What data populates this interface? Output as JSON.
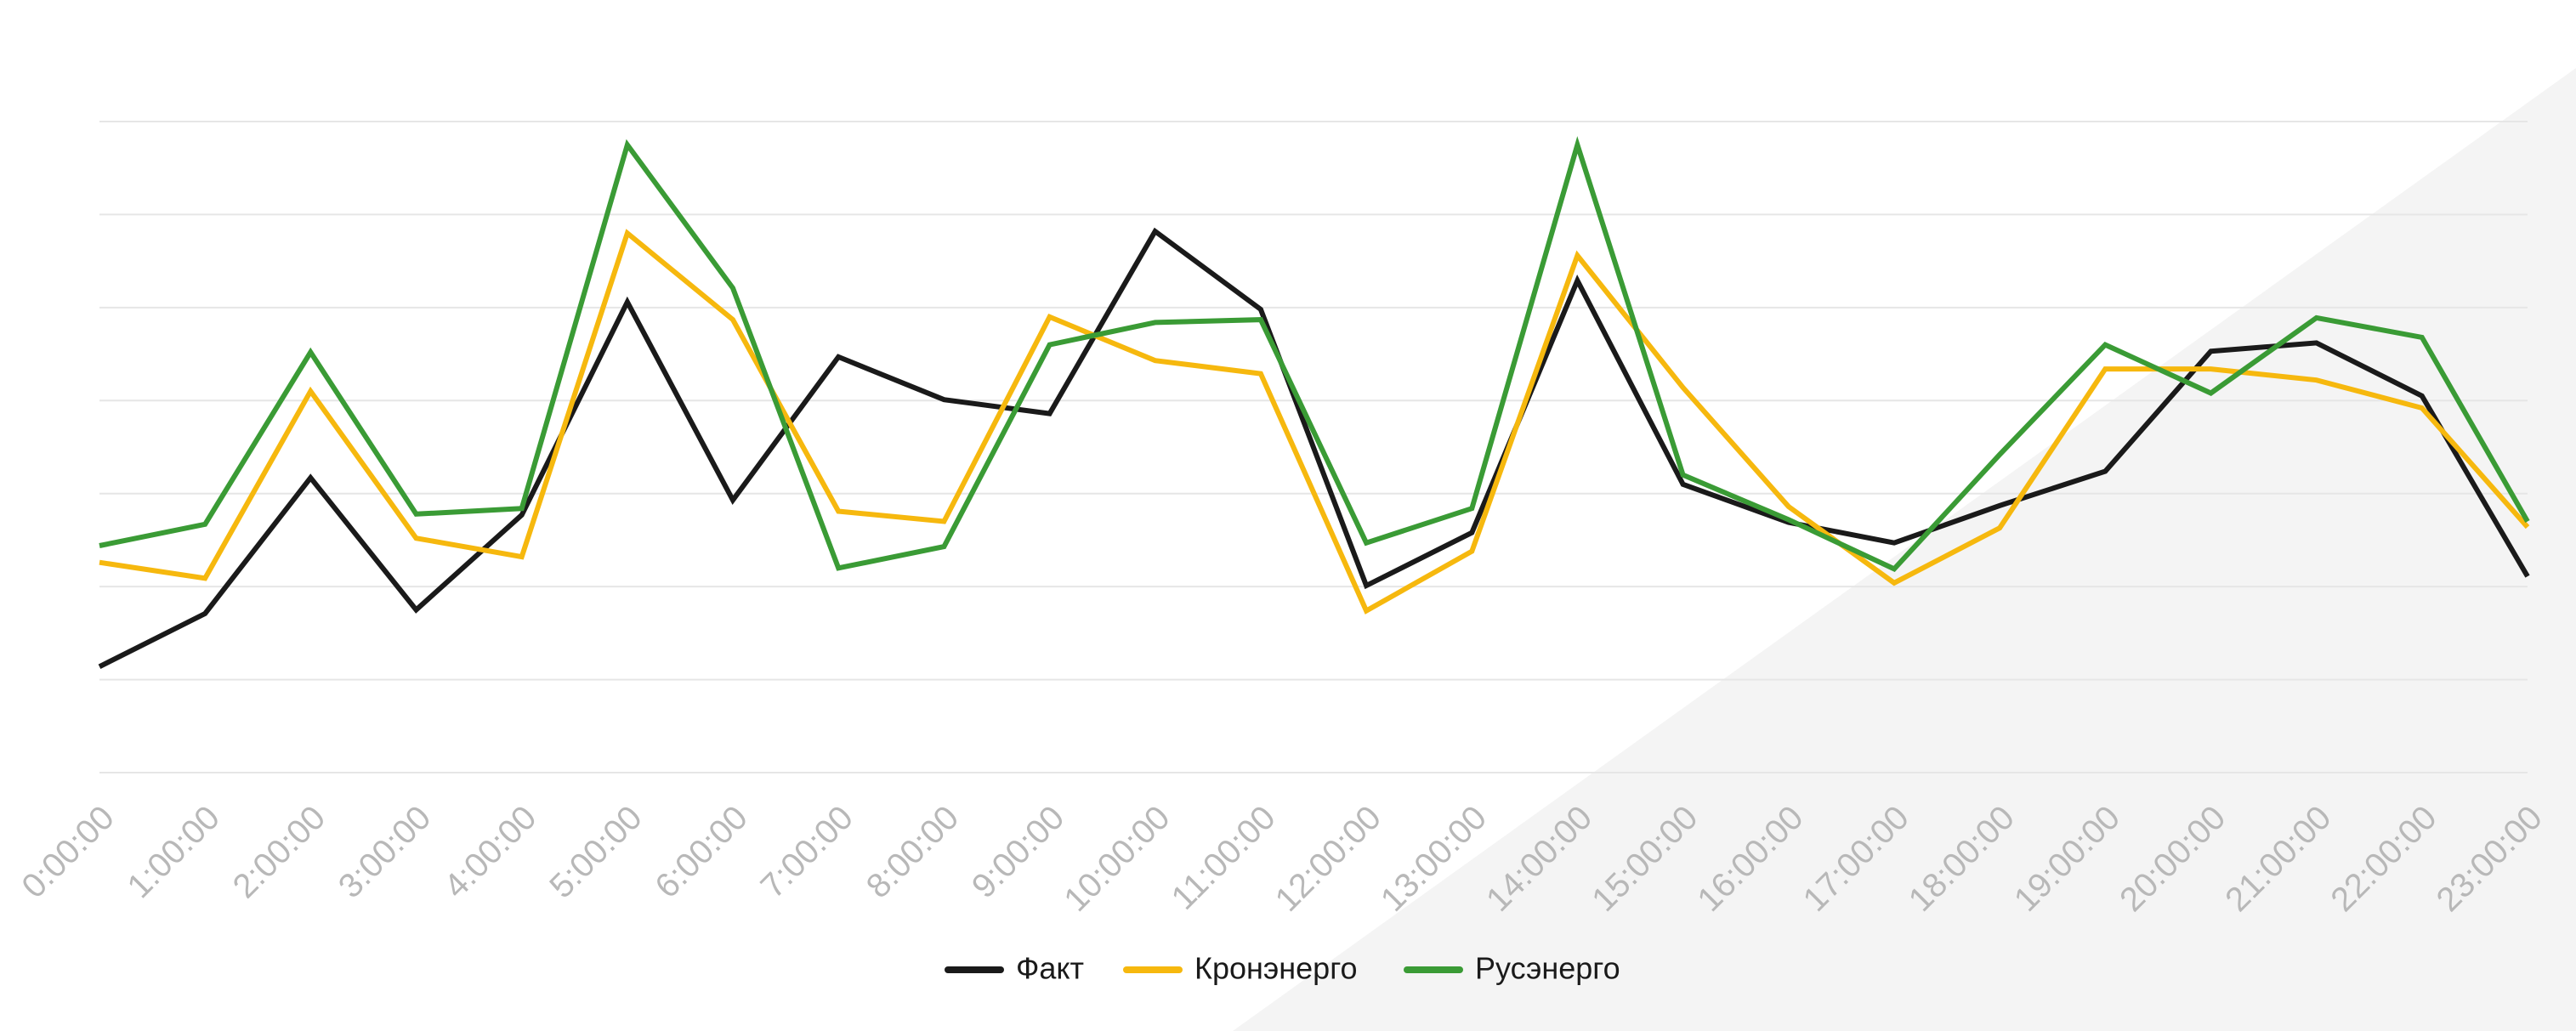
{
  "chart_data": {
    "type": "line",
    "title": "",
    "xlabel": "",
    "ylabel": "",
    "x": [
      "0:00:00",
      "1:00:00",
      "2:00:00",
      "3:00:00",
      "4:00:00",
      "5:00:00",
      "6:00:00",
      "7:00:00",
      "8:00:00",
      "9:00:00",
      "10:00:00",
      "11:00:00",
      "12:00:00",
      "13:00:00",
      "14:00:00",
      "15:00:00",
      "16:00:00",
      "17:00:00",
      "18:00:00",
      "19:00:00",
      "20:00:00",
      "21:00:00",
      "22:00:00",
      "23:00:00"
    ],
    "ylim": [
      0,
      7
    ],
    "y_gridlines": 7,
    "y_tick_labels_shown": false,
    "grid": true,
    "legend_position": "bottom-center",
    "series": [
      {
        "name": "Факт",
        "color": "#1a1a1a",
        "values": [
          1.14,
          1.71,
          3.17,
          1.75,
          2.77,
          5.06,
          2.93,
          4.47,
          4.01,
          3.86,
          5.82,
          4.98,
          2.01,
          2.58,
          5.29,
          3.1,
          2.69,
          2.47,
          2.87,
          3.24,
          4.53,
          4.62,
          4.05,
          2.11
        ]
      },
      {
        "name": "Кронэнерго",
        "color": "#f6b80e",
        "values": [
          2.26,
          2.09,
          4.1,
          2.52,
          2.32,
          5.8,
          4.87,
          2.81,
          2.7,
          4.9,
          4.43,
          4.29,
          1.74,
          2.38,
          5.56,
          4.14,
          2.86,
          2.04,
          2.63,
          4.34,
          4.34,
          4.22,
          3.92,
          2.64
        ]
      },
      {
        "name": "Русэнерго",
        "color": "#3a9b35",
        "values": [
          2.44,
          2.67,
          4.52,
          2.78,
          2.84,
          6.75,
          5.21,
          2.2,
          2.43,
          4.6,
          4.84,
          4.87,
          2.47,
          2.84,
          6.75,
          3.2,
          2.72,
          2.19,
          3.42,
          4.6,
          4.08,
          4.89,
          4.68,
          2.7
        ]
      }
    ]
  }
}
